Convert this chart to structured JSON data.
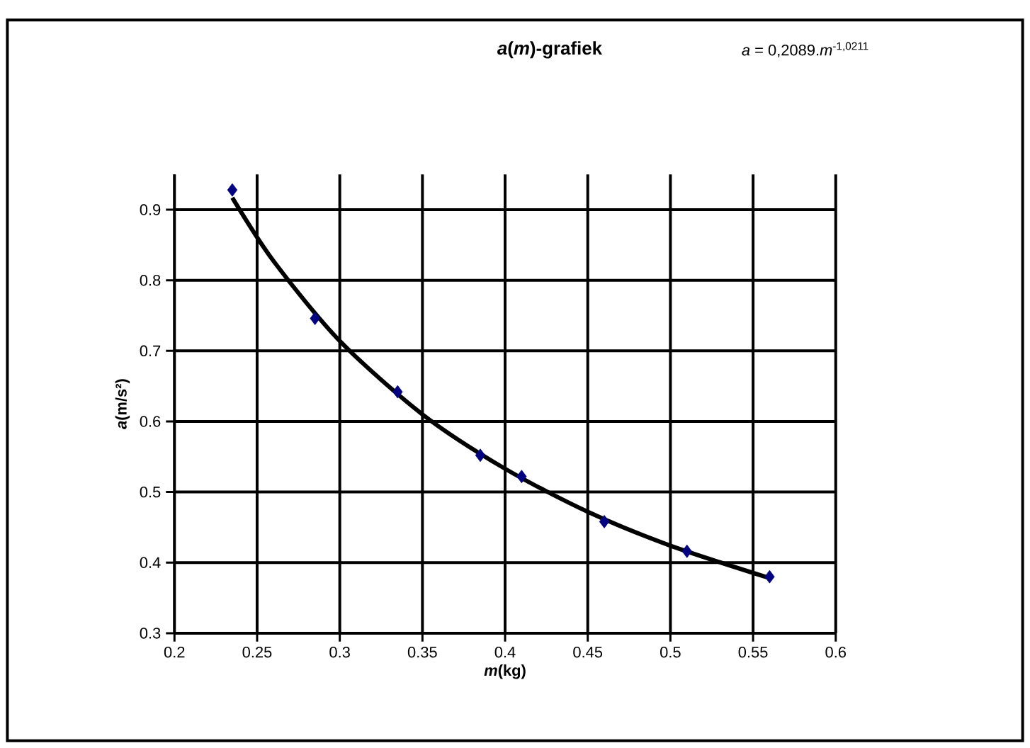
{
  "chart_data": {
    "type": "scatter",
    "title": "*a*(*m*)-grafiek",
    "xlabel": "*m*(kg)",
    "ylabel": "*a*(m/s²)",
    "annotations": [
      "*a* = 0,2089.*m*$^{-1,0211}$"
    ],
    "xlim": [
      0.2,
      0.6
    ],
    "ylim": [
      0.3,
      0.95
    ],
    "xticks": [
      0.2,
      0.25,
      0.3,
      0.35,
      0.4,
      0.45,
      0.5,
      0.55,
      0.6
    ],
    "yticks": [
      0.3,
      0.4,
      0.5,
      0.6,
      0.7,
      0.8,
      0.9
    ],
    "grid": true,
    "series": [
      {
        "marker": "diamond",
        "color": "#000080",
        "x": [
          0.235,
          0.285,
          0.335,
          0.385,
          0.41,
          0.46,
          0.51,
          0.56
        ],
        "values": [
          0.928,
          0.746,
          0.642,
          0.552,
          0.522,
          0.458,
          0.416,
          0.38
        ]
      },
      {
        "type": "line",
        "color": "#000000",
        "x": [
          0.235,
          0.26,
          0.3,
          0.35,
          0.4,
          0.45,
          0.5,
          0.56
        ],
        "values": [
          0.917,
          0.827,
          0.714,
          0.61,
          0.533,
          0.472,
          0.424,
          0.378
        ]
      }
    ]
  }
}
